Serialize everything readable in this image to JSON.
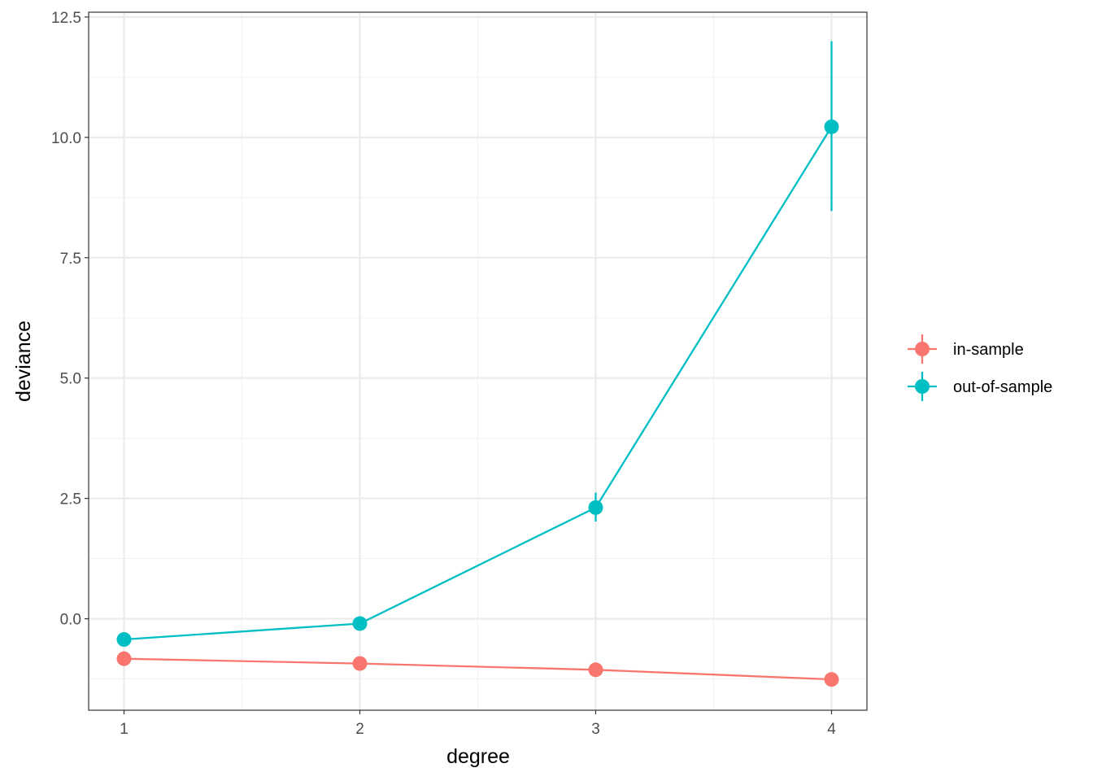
{
  "colors": {
    "in_sample": "#F8766D",
    "out_of_sample": "#00BFC4",
    "grid_major": "#EBEBEB",
    "grid_minor": "#F2F2F2",
    "panel_border": "#333333"
  },
  "chart_data": {
    "type": "line",
    "xlabel": "degree",
    "ylabel": "deviance",
    "x": [
      1,
      2,
      3,
      4
    ],
    "xticks": [
      "1",
      "2",
      "3",
      "4"
    ],
    "yticks": [
      "0.0",
      "2.5",
      "5.0",
      "7.5",
      "10.0",
      "12.5"
    ],
    "xlim": [
      0.85,
      4.15
    ],
    "ylim": [
      -1.9,
      12.6
    ],
    "grid": true,
    "legend_position": "right",
    "series": [
      {
        "name": "in-sample",
        "color_key": "in_sample",
        "values": [
          -0.83,
          -0.93,
          -1.06,
          -1.26
        ],
        "error_low": [
          -0.83,
          -0.93,
          -1.06,
          -1.26
        ],
        "error_high": [
          -0.83,
          -0.93,
          -1.06,
          -1.26
        ]
      },
      {
        "name": "out-of-sample",
        "color_key": "out_of_sample",
        "values": [
          -0.43,
          -0.1,
          2.31,
          10.22
        ],
        "error_low": [
          -0.43,
          -0.1,
          2.02,
          8.47
        ],
        "error_high": [
          -0.43,
          -0.1,
          2.62,
          12.0
        ]
      }
    ]
  }
}
